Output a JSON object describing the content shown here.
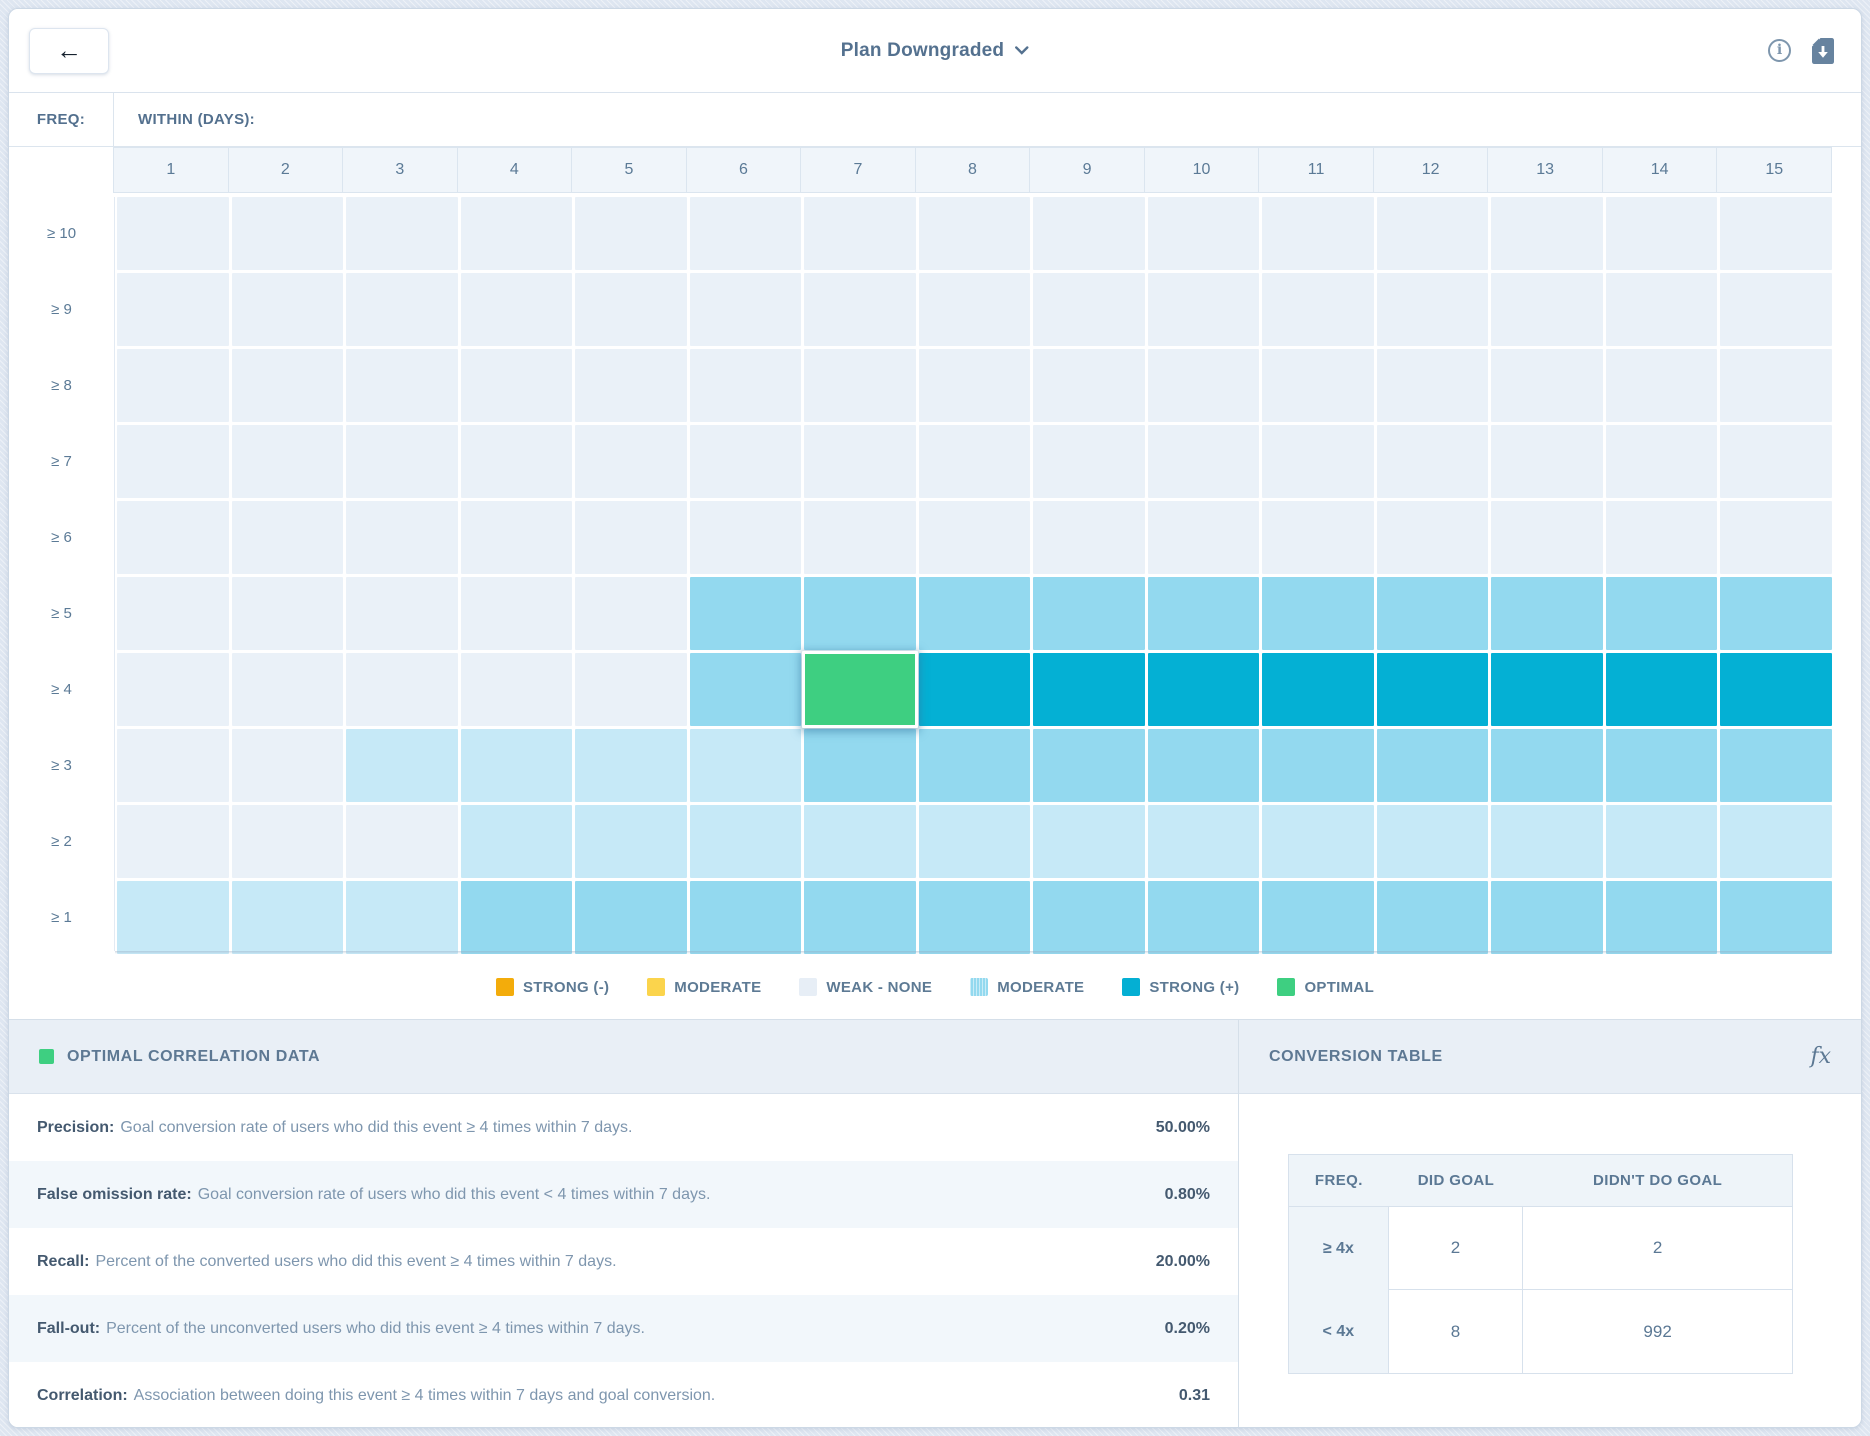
{
  "header": {
    "title": "Plan Downgraded",
    "back_label": "←"
  },
  "heatmap": {
    "freq_label": "FREQ:",
    "within_label": "WITHIN (DAYS):",
    "columns": [
      "1",
      "2",
      "3",
      "4",
      "5",
      "6",
      "7",
      "8",
      "9",
      "10",
      "11",
      "12",
      "13",
      "14",
      "15"
    ],
    "palette": {
      "n": "#eaf1f8",
      "l": "#c6e9f7",
      "m": "#93d9ef",
      "s": "#04b0d4",
      "o": "#3ecf81"
    },
    "rows": [
      {
        "label": "≥ 10",
        "cells": [
          "n",
          "n",
          "n",
          "n",
          "n",
          "n",
          "n",
          "n",
          "n",
          "n",
          "n",
          "n",
          "n",
          "n",
          "n"
        ]
      },
      {
        "label": "≥ 9",
        "cells": [
          "n",
          "n",
          "n",
          "n",
          "n",
          "n",
          "n",
          "n",
          "n",
          "n",
          "n",
          "n",
          "n",
          "n",
          "n"
        ]
      },
      {
        "label": "≥ 8",
        "cells": [
          "n",
          "n",
          "n",
          "n",
          "n",
          "n",
          "n",
          "n",
          "n",
          "n",
          "n",
          "n",
          "n",
          "n",
          "n"
        ]
      },
      {
        "label": "≥ 7",
        "cells": [
          "n",
          "n",
          "n",
          "n",
          "n",
          "n",
          "n",
          "n",
          "n",
          "n",
          "n",
          "n",
          "n",
          "n",
          "n"
        ]
      },
      {
        "label": "≥ 6",
        "cells": [
          "n",
          "n",
          "n",
          "n",
          "n",
          "n",
          "n",
          "n",
          "n",
          "n",
          "n",
          "n",
          "n",
          "n",
          "n"
        ]
      },
      {
        "label": "≥ 5",
        "cells": [
          "n",
          "n",
          "n",
          "n",
          "n",
          "m",
          "m",
          "m",
          "m",
          "m",
          "m",
          "m",
          "m",
          "m",
          "m"
        ]
      },
      {
        "label": "≥ 4",
        "cells": [
          "n",
          "n",
          "n",
          "n",
          "n",
          "m",
          "o",
          "s",
          "s",
          "s",
          "s",
          "s",
          "s",
          "s",
          "s"
        ]
      },
      {
        "label": "≥ 3",
        "cells": [
          "n",
          "n",
          "l",
          "l",
          "l",
          "l",
          "m",
          "m",
          "m",
          "m",
          "m",
          "m",
          "m",
          "m",
          "m"
        ]
      },
      {
        "label": "≥ 2",
        "cells": [
          "n",
          "n",
          "n",
          "l",
          "l",
          "l",
          "l",
          "l",
          "l",
          "l",
          "l",
          "l",
          "l",
          "l",
          "l"
        ]
      },
      {
        "label": "≥ 1",
        "cells": [
          "l",
          "l",
          "l",
          "m",
          "m",
          "m",
          "m",
          "m",
          "m",
          "m",
          "m",
          "m",
          "m",
          "m",
          "m"
        ]
      }
    ]
  },
  "legend": {
    "items": [
      {
        "label": "STRONG (-)",
        "color": "#f3ac0b",
        "textured": false
      },
      {
        "label": "MODERATE",
        "color": "#fbd44c",
        "textured": false
      },
      {
        "label": "WEAK - NONE",
        "color": "#e7eef6",
        "textured": false
      },
      {
        "label": "MODERATE",
        "color": "#93d9ef",
        "textured": true
      },
      {
        "label": "STRONG (+)",
        "color": "#04afd3",
        "textured": false
      },
      {
        "label": "OPTIMAL",
        "color": "#3ecf81",
        "textured": false
      }
    ]
  },
  "optimal_panel": {
    "title": "OPTIMAL CORRELATION DATA",
    "marker_color": "#3ecf81",
    "rows": [
      {
        "label": "Precision:",
        "description": "Goal conversion rate of users who did this event ≥ 4 times within 7 days.",
        "value": "50.00%"
      },
      {
        "label": "False omission rate:",
        "description": "Goal conversion rate of users who did this event < 4 times within 7 days.",
        "value": "0.80%"
      },
      {
        "label": "Recall:",
        "description": "Percent of the converted users who did this event ≥ 4 times within 7 days.",
        "value": "20.00%"
      },
      {
        "label": "Fall-out:",
        "description": "Percent of the unconverted users who did this event ≥ 4 times within 7 days.",
        "value": "0.20%"
      },
      {
        "label": "Correlation:",
        "description": "Association between doing this event ≥ 4 times within 7 days and goal conversion.",
        "value": "0.31"
      }
    ]
  },
  "conversion_panel": {
    "title": "CONVERSION TABLE",
    "fx_label": "fx",
    "table": {
      "headers": [
        "FREQ.",
        "DID GOAL",
        "DIDN'T DO GOAL"
      ],
      "rows": [
        {
          "freq": "≥ 4x",
          "did": "2",
          "didnt": "2"
        },
        {
          "freq": "< 4x",
          "did": "8",
          "didnt": "992"
        }
      ]
    }
  }
}
